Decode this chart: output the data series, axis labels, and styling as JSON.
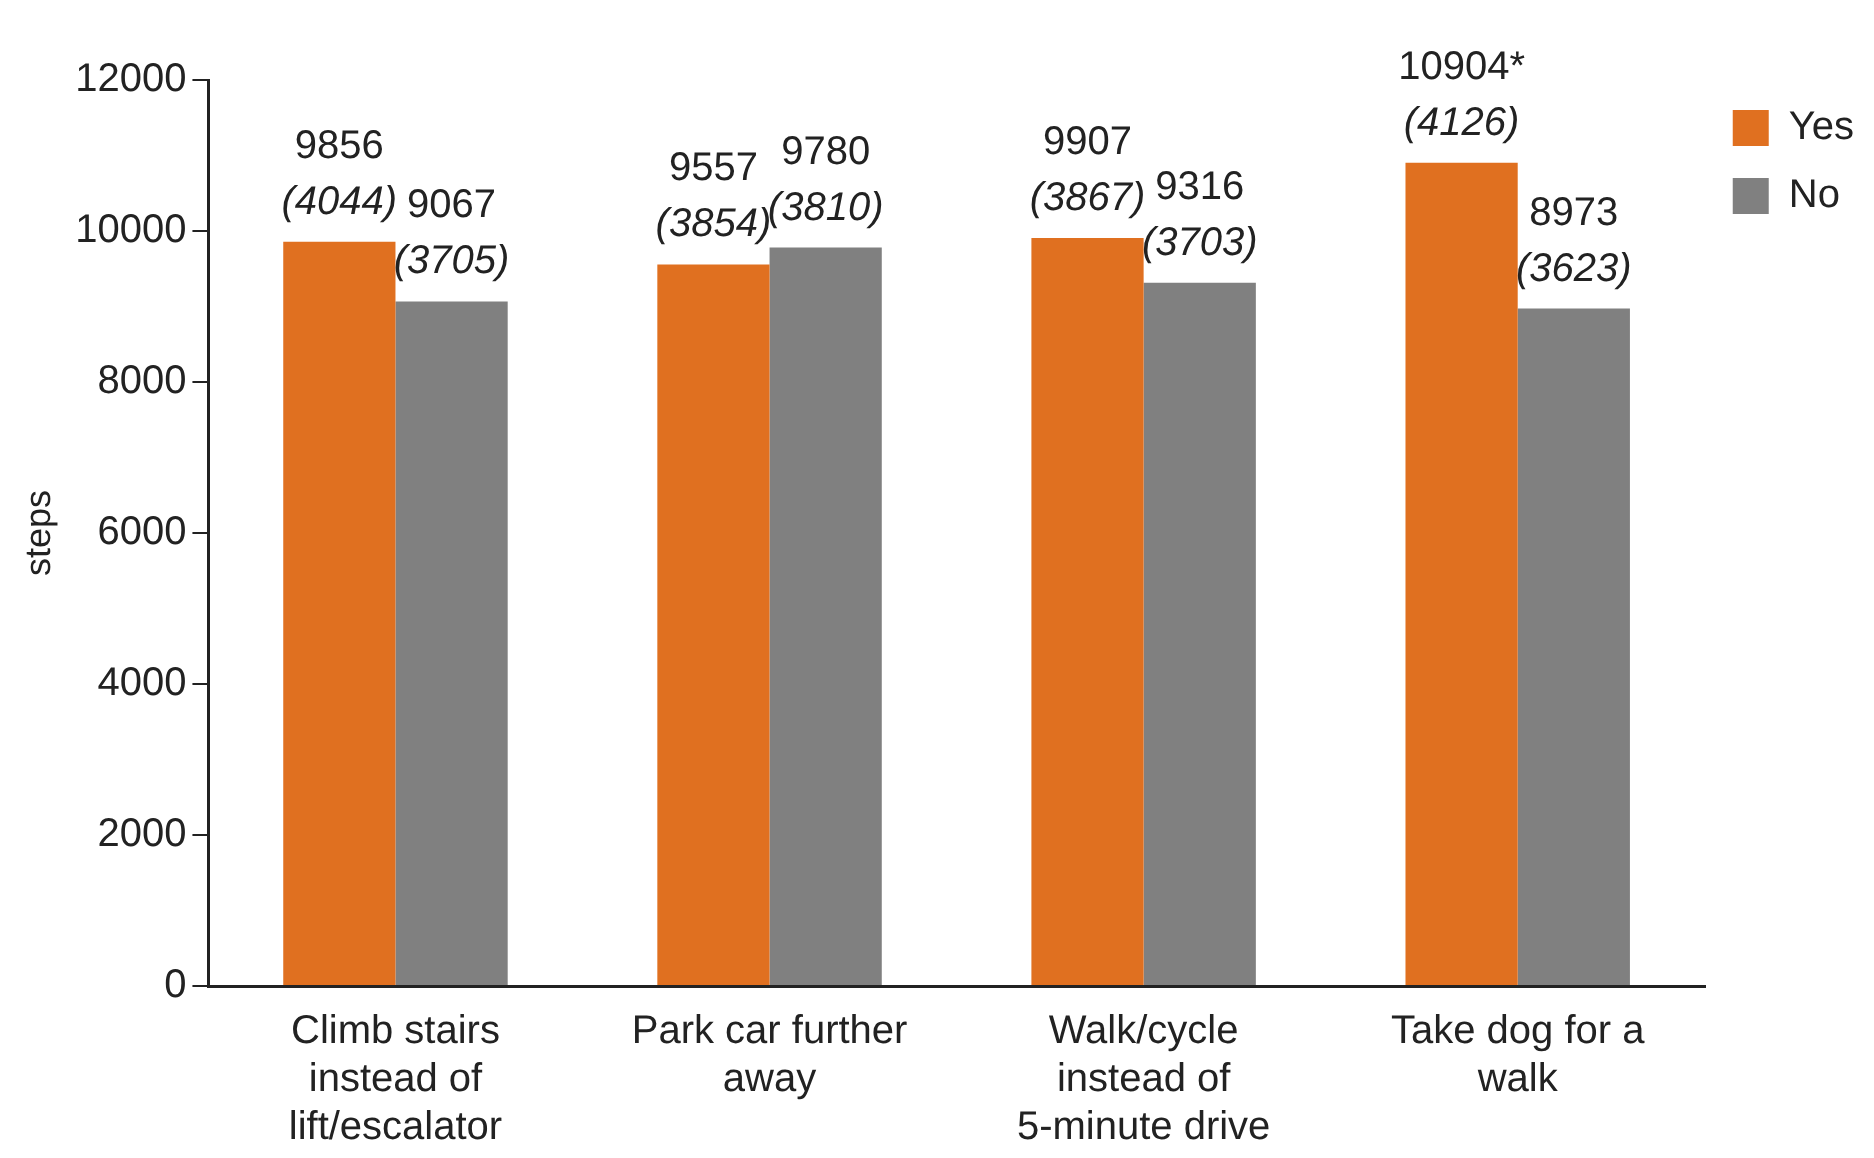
{
  "chart_data": {
    "type": "bar",
    "ylabel": "steps",
    "categories": [
      "Climb stairs instead of lift/escalator",
      "Park car further away",
      "Walk/cycle instead of 5-minute drive",
      "Take dog for a walk"
    ],
    "series": [
      {
        "name": "Yes",
        "color": "#e07020",
        "values": [
          9856,
          9557,
          9907,
          10904
        ],
        "value_labels": [
          "9856\n(4044)",
          "9557\n(3854)",
          "9907\n(3867)",
          "10904*\n(4126)"
        ]
      },
      {
        "name": "No",
        "color": "#808080",
        "values": [
          9067,
          9780,
          9316,
          8973
        ],
        "value_labels": [
          "9067\n(3705)",
          "9780\n(3810)",
          "9316\n(3703)",
          "8973\n(3623)"
        ]
      }
    ],
    "ylim": [
      0,
      12000
    ],
    "yticks": [
      0,
      2000,
      4000,
      6000,
      8000,
      10000,
      12000
    ],
    "grid": false,
    "legend": "top right"
  }
}
